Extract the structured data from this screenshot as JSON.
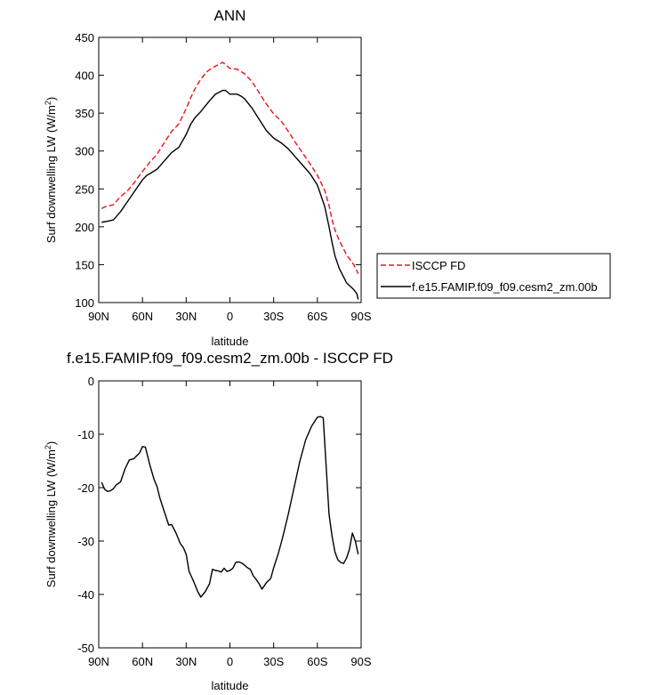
{
  "colors": {
    "isccp": "#e8141b",
    "model": "#000000"
  },
  "chart_data": [
    {
      "type": "line",
      "title": "ANN",
      "xlabel": "latitude",
      "ylabel_main": "Surf downwelling LW (W/m",
      "ylabel_sup": "2",
      "ylabel_tail": ")",
      "xlim": [
        -90,
        90
      ],
      "ylim": [
        100,
        450
      ],
      "x_ticks": [
        -90,
        -60,
        -30,
        0,
        30,
        60,
        90
      ],
      "x_tick_labels": [
        "90N",
        "60N",
        "30N",
        "0",
        "30S",
        "60S",
        "90S"
      ],
      "y_ticks": [
        100,
        150,
        200,
        250,
        300,
        350,
        400,
        450
      ],
      "y_tick_labels": [
        "100",
        "150",
        "200",
        "250",
        "300",
        "350",
        "400",
        "450"
      ],
      "legend": [
        "ISCCP FD",
        "f.e15.FAMIP.f09_f09.cesm2_zm.00b"
      ],
      "series": [
        {
          "name": "ISCCP FD",
          "style": "dashed",
          "x": [
            -88,
            -85,
            -80,
            -75,
            -70,
            -65,
            -60,
            -55,
            -50,
            -45,
            -40,
            -35,
            -30,
            -27,
            -24,
            -20,
            -15,
            -10,
            -5,
            -3,
            0,
            5,
            10,
            15,
            20,
            25,
            30,
            35,
            40,
            45,
            50,
            55,
            60,
            65,
            68,
            70,
            72,
            75,
            80,
            85,
            88
          ],
          "y": [
            224,
            227,
            229,
            240,
            248,
            260,
            273,
            285,
            296,
            311,
            326,
            336,
            356,
            370,
            382,
            395,
            406,
            412,
            417,
            414,
            409,
            408,
            402,
            392,
            377,
            362,
            349,
            340,
            326,
            311,
            297,
            283,
            268,
            248,
            228,
            210,
            196,
            182,
            163,
            150,
            138
          ]
        },
        {
          "name": "f.e15.FAMIP.f09_f09.cesm2_zm.00b",
          "style": "solid",
          "x": [
            -88,
            -85,
            -80,
            -75,
            -70,
            -65,
            -60,
            -57,
            -55,
            -50,
            -45,
            -40,
            -35,
            -30,
            -27,
            -24,
            -20,
            -15,
            -10,
            -5,
            -3,
            0,
            5,
            8,
            10,
            15,
            20,
            25,
            30,
            35,
            40,
            45,
            50,
            55,
            60,
            65,
            68,
            70,
            72,
            75,
            80,
            85,
            87,
            88
          ],
          "y": [
            206,
            207,
            209,
            220,
            234,
            248,
            262,
            268,
            270,
            276,
            287,
            298,
            305,
            322,
            335,
            344,
            352,
            364,
            375,
            380,
            380,
            375,
            375,
            372,
            369,
            357,
            342,
            327,
            317,
            311,
            303,
            292,
            281,
            270,
            255,
            227,
            200,
            180,
            162,
            145,
            126,
            117,
            112,
            104
          ]
        }
      ]
    },
    {
      "type": "line",
      "title": "f.e15.FAMIP.f09_f09.cesm2_zm.00b - ISCCP FD",
      "xlabel": "latitude",
      "ylabel_main": "Surf downwelling LW (W/m",
      "ylabel_sup": "2",
      "ylabel_tail": ")",
      "xlim": [
        -90,
        90
      ],
      "ylim": [
        -50,
        0
      ],
      "x_ticks": [
        -90,
        -60,
        -30,
        0,
        30,
        60,
        90
      ],
      "x_tick_labels": [
        "90N",
        "60N",
        "30N",
        "0",
        "30S",
        "60S",
        "90S"
      ],
      "y_ticks": [
        -50,
        -40,
        -30,
        -20,
        -10,
        0
      ],
      "y_tick_labels": [
        "-50",
        "-40",
        "-30",
        "-20",
        "-10",
        "0"
      ],
      "series": [
        {
          "style": "solid",
          "x": [
            -88,
            -86,
            -84,
            -82,
            -80,
            -78,
            -75,
            -72,
            -69,
            -66,
            -62,
            -60,
            -58,
            -55,
            -52,
            -50,
            -48,
            -45,
            -42,
            -40,
            -37,
            -34,
            -32,
            -30,
            -28,
            -25,
            -22,
            -20,
            -17,
            -14,
            -12,
            -10,
            -8,
            -6,
            -4,
            -2,
            0,
            2,
            4,
            6,
            8,
            10,
            12,
            14,
            16,
            18,
            20,
            22,
            25,
            28,
            30,
            33,
            36,
            40,
            44,
            48,
            52,
            56,
            60,
            62,
            64,
            66,
            68,
            70,
            72,
            74,
            76,
            78,
            80,
            82,
            84,
            86,
            88
          ],
          "y": [
            -19,
            -20.3,
            -20.7,
            -20.6,
            -20.2,
            -19.5,
            -18.9,
            -16.5,
            -14.8,
            -14.6,
            -13.5,
            -12.3,
            -12.4,
            -15.7,
            -18.5,
            -19.8,
            -22,
            -24.5,
            -27,
            -26.9,
            -28.5,
            -30.5,
            -31.2,
            -32.5,
            -35.7,
            -37.5,
            -39.5,
            -40.5,
            -39.5,
            -38,
            -35.3,
            -35.5,
            -35.6,
            -35.8,
            -35.1,
            -35.7,
            -35.5,
            -35.1,
            -34,
            -33.9,
            -34.1,
            -34.5,
            -35,
            -35.3,
            -36.5,
            -37.2,
            -38,
            -39,
            -37.8,
            -37,
            -35,
            -32.5,
            -29.5,
            -25,
            -20,
            -15,
            -11,
            -8.5,
            -6.8,
            -6.7,
            -6.9,
            -16,
            -25,
            -29,
            -32,
            -33.5,
            -34,
            -34.2,
            -33.2,
            -31.5,
            -28.5,
            -30,
            -32.5
          ]
        }
      ]
    }
  ]
}
